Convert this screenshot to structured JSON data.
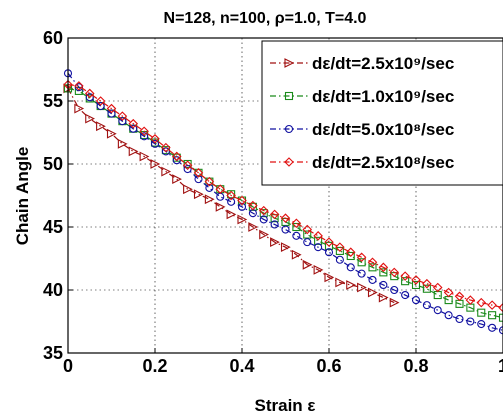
{
  "chart_data": {
    "type": "line",
    "title": "N=128, n=100, ρ=1.0, T=4.0",
    "xlabel": "Strain ε",
    "ylabel": "Chain Angle",
    "xlim": [
      0,
      1
    ],
    "ylim": [
      35,
      60
    ],
    "xticks": [
      "0",
      "0.2",
      "0.4",
      "0.6",
      "0.8",
      "1"
    ],
    "yticks": [
      "35",
      "40",
      "45",
      "50",
      "55",
      "60"
    ],
    "grid": true,
    "legend_position": "top-right",
    "series": [
      {
        "name": "dε/dt=2.5x10⁹/sec",
        "color": "#a01010",
        "marker": "triangle-right",
        "line_style": "dash-dot",
        "x": [
          0.0,
          0.025,
          0.05,
          0.075,
          0.1,
          0.125,
          0.15,
          0.175,
          0.2,
          0.225,
          0.25,
          0.275,
          0.3,
          0.325,
          0.35,
          0.375,
          0.4,
          0.425,
          0.45,
          0.475,
          0.5,
          0.525,
          0.55,
          0.575,
          0.6,
          0.625,
          0.65,
          0.675,
          0.7,
          0.725,
          0.75
        ],
        "y": [
          56.0,
          54.4,
          53.6,
          53.0,
          52.4,
          51.6,
          51.0,
          50.6,
          50.0,
          49.4,
          48.8,
          48.0,
          47.6,
          47.2,
          46.6,
          46.0,
          45.6,
          45.0,
          44.4,
          43.8,
          43.4,
          42.8,
          42.0,
          41.6,
          41.0,
          40.6,
          40.4,
          40.2,
          39.8,
          39.4,
          39.0
        ]
      },
      {
        "name": "dε/dt=1.0x10⁹/sec",
        "color": "#1a8a1a",
        "marker": "square",
        "line_style": "dash-dot",
        "x": [
          0.0,
          0.025,
          0.05,
          0.075,
          0.1,
          0.125,
          0.15,
          0.175,
          0.2,
          0.225,
          0.25,
          0.275,
          0.3,
          0.325,
          0.35,
          0.375,
          0.4,
          0.425,
          0.45,
          0.475,
          0.5,
          0.525,
          0.55,
          0.575,
          0.6,
          0.625,
          0.65,
          0.675,
          0.7,
          0.725,
          0.75,
          0.775,
          0.8,
          0.825,
          0.85,
          0.875,
          0.9,
          0.925,
          0.95,
          0.975,
          1.0
        ],
        "y": [
          56.0,
          55.8,
          55.2,
          54.6,
          54.0,
          53.4,
          52.8,
          52.3,
          51.7,
          51.1,
          50.5,
          50.0,
          49.3,
          48.6,
          48.0,
          47.6,
          47.1,
          46.6,
          46.1,
          45.7,
          45.4,
          45.0,
          44.4,
          43.9,
          43.5,
          43.1,
          42.7,
          42.2,
          41.8,
          41.4,
          41.1,
          40.7,
          40.4,
          40.1,
          39.6,
          39.2,
          38.9,
          38.6,
          38.2,
          38.0,
          37.8
        ]
      },
      {
        "name": "dε/dt=5.0x10⁸/sec",
        "color": "#1010a0",
        "marker": "circle",
        "line_style": "dash-dot",
        "x": [
          0.0,
          0.025,
          0.05,
          0.075,
          0.1,
          0.125,
          0.15,
          0.175,
          0.2,
          0.225,
          0.25,
          0.275,
          0.3,
          0.325,
          0.35,
          0.375,
          0.4,
          0.425,
          0.45,
          0.475,
          0.5,
          0.525,
          0.55,
          0.575,
          0.6,
          0.625,
          0.65,
          0.675,
          0.7,
          0.725,
          0.75,
          0.775,
          0.8,
          0.825,
          0.85,
          0.875,
          0.9,
          0.925,
          0.95,
          0.975,
          1.0
        ],
        "y": [
          57.2,
          56.1,
          55.3,
          54.6,
          54.0,
          53.4,
          52.8,
          52.2,
          51.6,
          51.0,
          50.3,
          49.6,
          48.8,
          48.1,
          47.4,
          47.0,
          46.6,
          46.1,
          45.6,
          45.2,
          44.8,
          44.3,
          43.8,
          43.4,
          43.0,
          42.4,
          41.8,
          41.3,
          40.8,
          40.4,
          40.0,
          39.6,
          39.2,
          38.8,
          38.4,
          38.0,
          37.7,
          37.5,
          37.3,
          37.0,
          36.8
        ]
      },
      {
        "name": "dε/dt=2.5x10⁸/sec",
        "color": "#e01010",
        "marker": "diamond",
        "line_style": "dash-dot",
        "x": [
          0.0,
          0.025,
          0.05,
          0.075,
          0.1,
          0.125,
          0.15,
          0.175,
          0.2,
          0.225,
          0.25,
          0.275,
          0.3,
          0.325,
          0.35,
          0.375,
          0.4,
          0.425,
          0.45,
          0.475,
          0.5,
          0.525,
          0.55,
          0.575,
          0.6,
          0.625,
          0.65,
          0.675,
          0.7,
          0.725,
          0.75,
          0.775,
          0.8,
          0.825,
          0.85,
          0.875,
          0.9,
          0.925,
          0.95,
          0.975,
          1.0
        ],
        "y": [
          56.3,
          56.2,
          55.6,
          55.0,
          54.4,
          53.8,
          53.2,
          52.6,
          52.0,
          51.3,
          50.6,
          49.9,
          49.3,
          48.6,
          48.0,
          47.5,
          47.1,
          46.7,
          46.3,
          46.0,
          45.7,
          45.3,
          44.8,
          44.3,
          43.8,
          43.4,
          43.0,
          42.6,
          42.2,
          41.8,
          41.4,
          41.1,
          40.8,
          40.5,
          40.2,
          39.8,
          39.5,
          39.2,
          39.0,
          38.8,
          38.6
        ]
      }
    ]
  }
}
